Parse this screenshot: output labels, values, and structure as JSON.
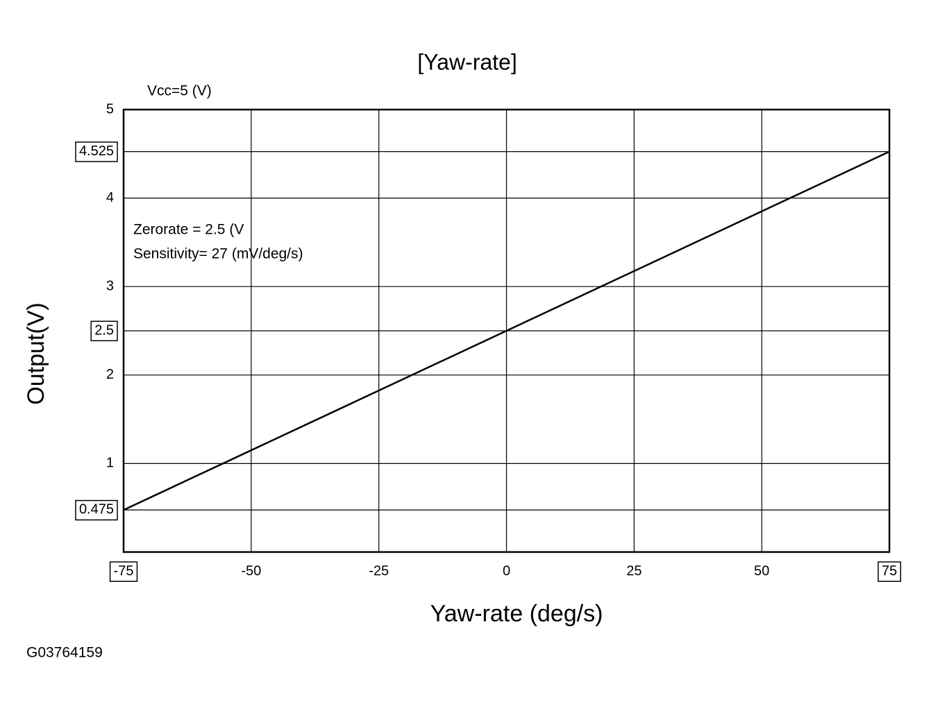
{
  "chart_data": {
    "type": "line",
    "title": "[Yaw-rate]",
    "x_label": "Yaw-rate  (deg/s)",
    "y_label": "Output(V)",
    "annotations": [
      "Vcc=5 (V)",
      "Zerorate = 2.5 (V",
      "Sensitivity= 27 (mV/deg/s)"
    ],
    "figure_id": "G03764159",
    "x": [
      -75,
      0,
      75
    ],
    "series": [
      {
        "color": "#000000",
        "values": [
          0.475,
          2.5,
          4.525
        ]
      }
    ],
    "xlim": [
      -75,
      75
    ],
    "xticks": [
      -75,
      -50,
      -25,
      0,
      25,
      50,
      75
    ],
    "ylim": [
      0,
      5
    ],
    "yticks": [
      0.475,
      1,
      2,
      2.5,
      3,
      4,
      4.525,
      5
    ],
    "grid": true
  }
}
